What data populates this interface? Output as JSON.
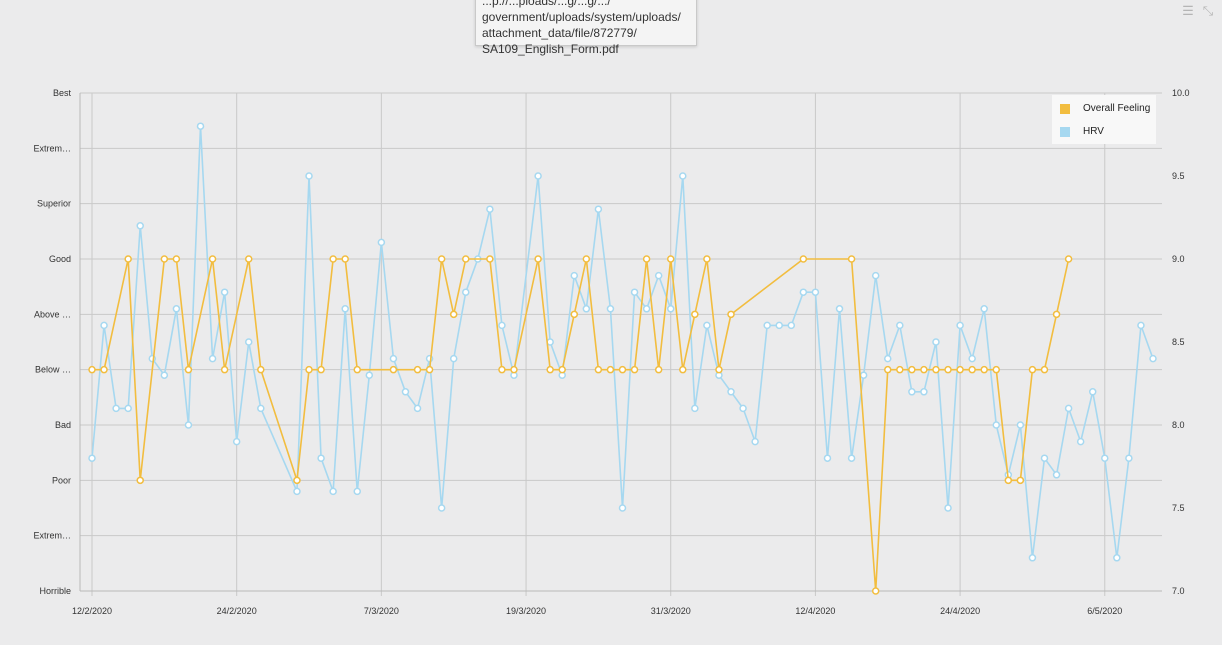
{
  "tooltip": {
    "lines": [
      "...p://...ploads/...g/...g/.../",
      "government/uploads/system/uploads/",
      "attachment_data/file/872779/",
      "SA109_English_Form.pdf"
    ]
  },
  "toolbar": {
    "menu_icon": "menu-icon",
    "collapse_icon": "collapse-icon"
  },
  "colors": {
    "feeling": "#f2bd3f",
    "hrv": "#a6d8f0",
    "grid": "#c9c9c9",
    "background": "#ebebec"
  },
  "chart_data": {
    "type": "line",
    "x_tick_labels": [
      "12/2/2020",
      "24/2/2020",
      "7/3/2020",
      "19/3/2020",
      "31/3/2020",
      "12/4/2020",
      "24/4/2020",
      "6/5/2020"
    ],
    "x_start_date": "2020-02-12",
    "x_range_days": [
      -0.5,
      88.7
    ],
    "y_left_labels": [
      "Horrible",
      "Extrem…",
      "Poor",
      "Bad",
      "Below …",
      "Above …",
      "Good",
      "Superior",
      "Extrem…",
      "Best"
    ],
    "y_left_range": [
      0,
      9
    ],
    "y_right_labels": [
      "7.0",
      "7.5",
      "8.0",
      "8.5",
      "9.0",
      "9.5",
      "10.0"
    ],
    "y_right_range": [
      7.0,
      10.0
    ],
    "legend_position": "top-right",
    "grid": true,
    "series": [
      {
        "name": "Overall Feeling",
        "axis": "left",
        "points": [
          [
            0,
            4
          ],
          [
            1,
            4
          ],
          [
            3,
            6
          ],
          [
            4,
            2
          ],
          [
            6,
            6
          ],
          [
            7,
            6
          ],
          [
            8,
            4
          ],
          [
            10,
            6
          ],
          [
            11,
            4
          ],
          [
            13,
            6
          ],
          [
            14,
            4
          ],
          [
            17,
            2
          ],
          [
            18,
            4
          ],
          [
            19,
            4
          ],
          [
            20,
            6
          ],
          [
            21,
            6
          ],
          [
            22,
            4
          ],
          [
            25,
            4
          ],
          [
            27,
            4
          ],
          [
            28,
            4
          ],
          [
            29,
            6
          ],
          [
            30,
            5
          ],
          [
            31,
            6
          ],
          [
            33,
            6
          ],
          [
            34,
            4
          ],
          [
            35,
            4
          ],
          [
            37,
            6
          ],
          [
            38,
            4
          ],
          [
            39,
            4
          ],
          [
            40,
            5
          ],
          [
            41,
            6
          ],
          [
            42,
            4
          ],
          [
            43,
            4
          ],
          [
            44,
            4
          ],
          [
            45,
            4
          ],
          [
            46,
            6
          ],
          [
            47,
            4
          ],
          [
            48,
            6
          ],
          [
            49,
            4
          ],
          [
            50,
            5
          ],
          [
            51,
            6
          ],
          [
            52,
            4
          ],
          [
            53,
            5
          ],
          [
            59,
            6
          ],
          [
            63,
            6
          ],
          [
            65,
            0
          ],
          [
            66,
            4
          ],
          [
            67,
            4
          ],
          [
            68,
            4
          ],
          [
            69,
            4
          ],
          [
            70,
            4
          ],
          [
            71,
            4
          ],
          [
            72,
            4
          ],
          [
            73,
            4
          ],
          [
            74,
            4
          ],
          [
            75,
            4
          ],
          [
            76,
            2
          ],
          [
            77,
            2
          ],
          [
            78,
            4
          ],
          [
            79,
            4
          ],
          [
            80,
            5
          ],
          [
            81,
            6
          ]
        ]
      },
      {
        "name": "HRV",
        "axis": "right",
        "points": [
          [
            0,
            7.8
          ],
          [
            1,
            8.6
          ],
          [
            2,
            8.1
          ],
          [
            3,
            8.1
          ],
          [
            4,
            9.2
          ],
          [
            5,
            8.4
          ],
          [
            6,
            8.3
          ],
          [
            7,
            8.7
          ],
          [
            8,
            8.0
          ],
          [
            9,
            9.8
          ],
          [
            10,
            8.4
          ],
          [
            11,
            8.8
          ],
          [
            12,
            7.9
          ],
          [
            13,
            8.5
          ],
          [
            14,
            8.1
          ],
          [
            17,
            7.6
          ],
          [
            18,
            9.5
          ],
          [
            19,
            7.8
          ],
          [
            20,
            7.6
          ],
          [
            21,
            8.7
          ],
          [
            22,
            7.6
          ],
          [
            23,
            8.3
          ],
          [
            24,
            9.1
          ],
          [
            25,
            8.4
          ],
          [
            26,
            8.2
          ],
          [
            27,
            8.1
          ],
          [
            28,
            8.4
          ],
          [
            29,
            7.5
          ],
          [
            30,
            8.4
          ],
          [
            31,
            8.8
          ],
          [
            32,
            9.0
          ],
          [
            33,
            9.3
          ],
          [
            34,
            8.6
          ],
          [
            35,
            8.3
          ],
          [
            37,
            9.5
          ],
          [
            38,
            8.5
          ],
          [
            39,
            8.3
          ],
          [
            40,
            8.9
          ],
          [
            41,
            8.7
          ],
          [
            42,
            9.3
          ],
          [
            43,
            8.7
          ],
          [
            44,
            7.5
          ],
          [
            45,
            8.8
          ],
          [
            46,
            8.7
          ],
          [
            47,
            8.9
          ],
          [
            48,
            8.7
          ],
          [
            49,
            9.5
          ],
          [
            50,
            8.1
          ],
          [
            51,
            8.6
          ],
          [
            52,
            8.3
          ],
          [
            53,
            8.2
          ],
          [
            54,
            8.1
          ],
          [
            55,
            7.9
          ],
          [
            56,
            8.6
          ],
          [
            57,
            8.6
          ],
          [
            58,
            8.6
          ],
          [
            59,
            8.8
          ],
          [
            60,
            8.8
          ],
          [
            61,
            7.8
          ],
          [
            62,
            8.7
          ],
          [
            63,
            7.8
          ],
          [
            64,
            8.3
          ],
          [
            65,
            8.9
          ],
          [
            66,
            8.4
          ],
          [
            67,
            8.6
          ],
          [
            68,
            8.2
          ],
          [
            69,
            8.2
          ],
          [
            70,
            8.5
          ],
          [
            71,
            7.5
          ],
          [
            72,
            8.6
          ],
          [
            73,
            8.4
          ],
          [
            74,
            8.7
          ],
          [
            75,
            8.0
          ],
          [
            76,
            7.7
          ],
          [
            77,
            8.0
          ],
          [
            78,
            7.2
          ],
          [
            79,
            7.8
          ],
          [
            80,
            7.7
          ],
          [
            81,
            8.1
          ],
          [
            82,
            7.9
          ],
          [
            83,
            8.2
          ],
          [
            84,
            7.8
          ],
          [
            85,
            7.2
          ],
          [
            86,
            7.8
          ],
          [
            87,
            8.6
          ],
          [
            88,
            8.4
          ]
        ]
      }
    ]
  }
}
